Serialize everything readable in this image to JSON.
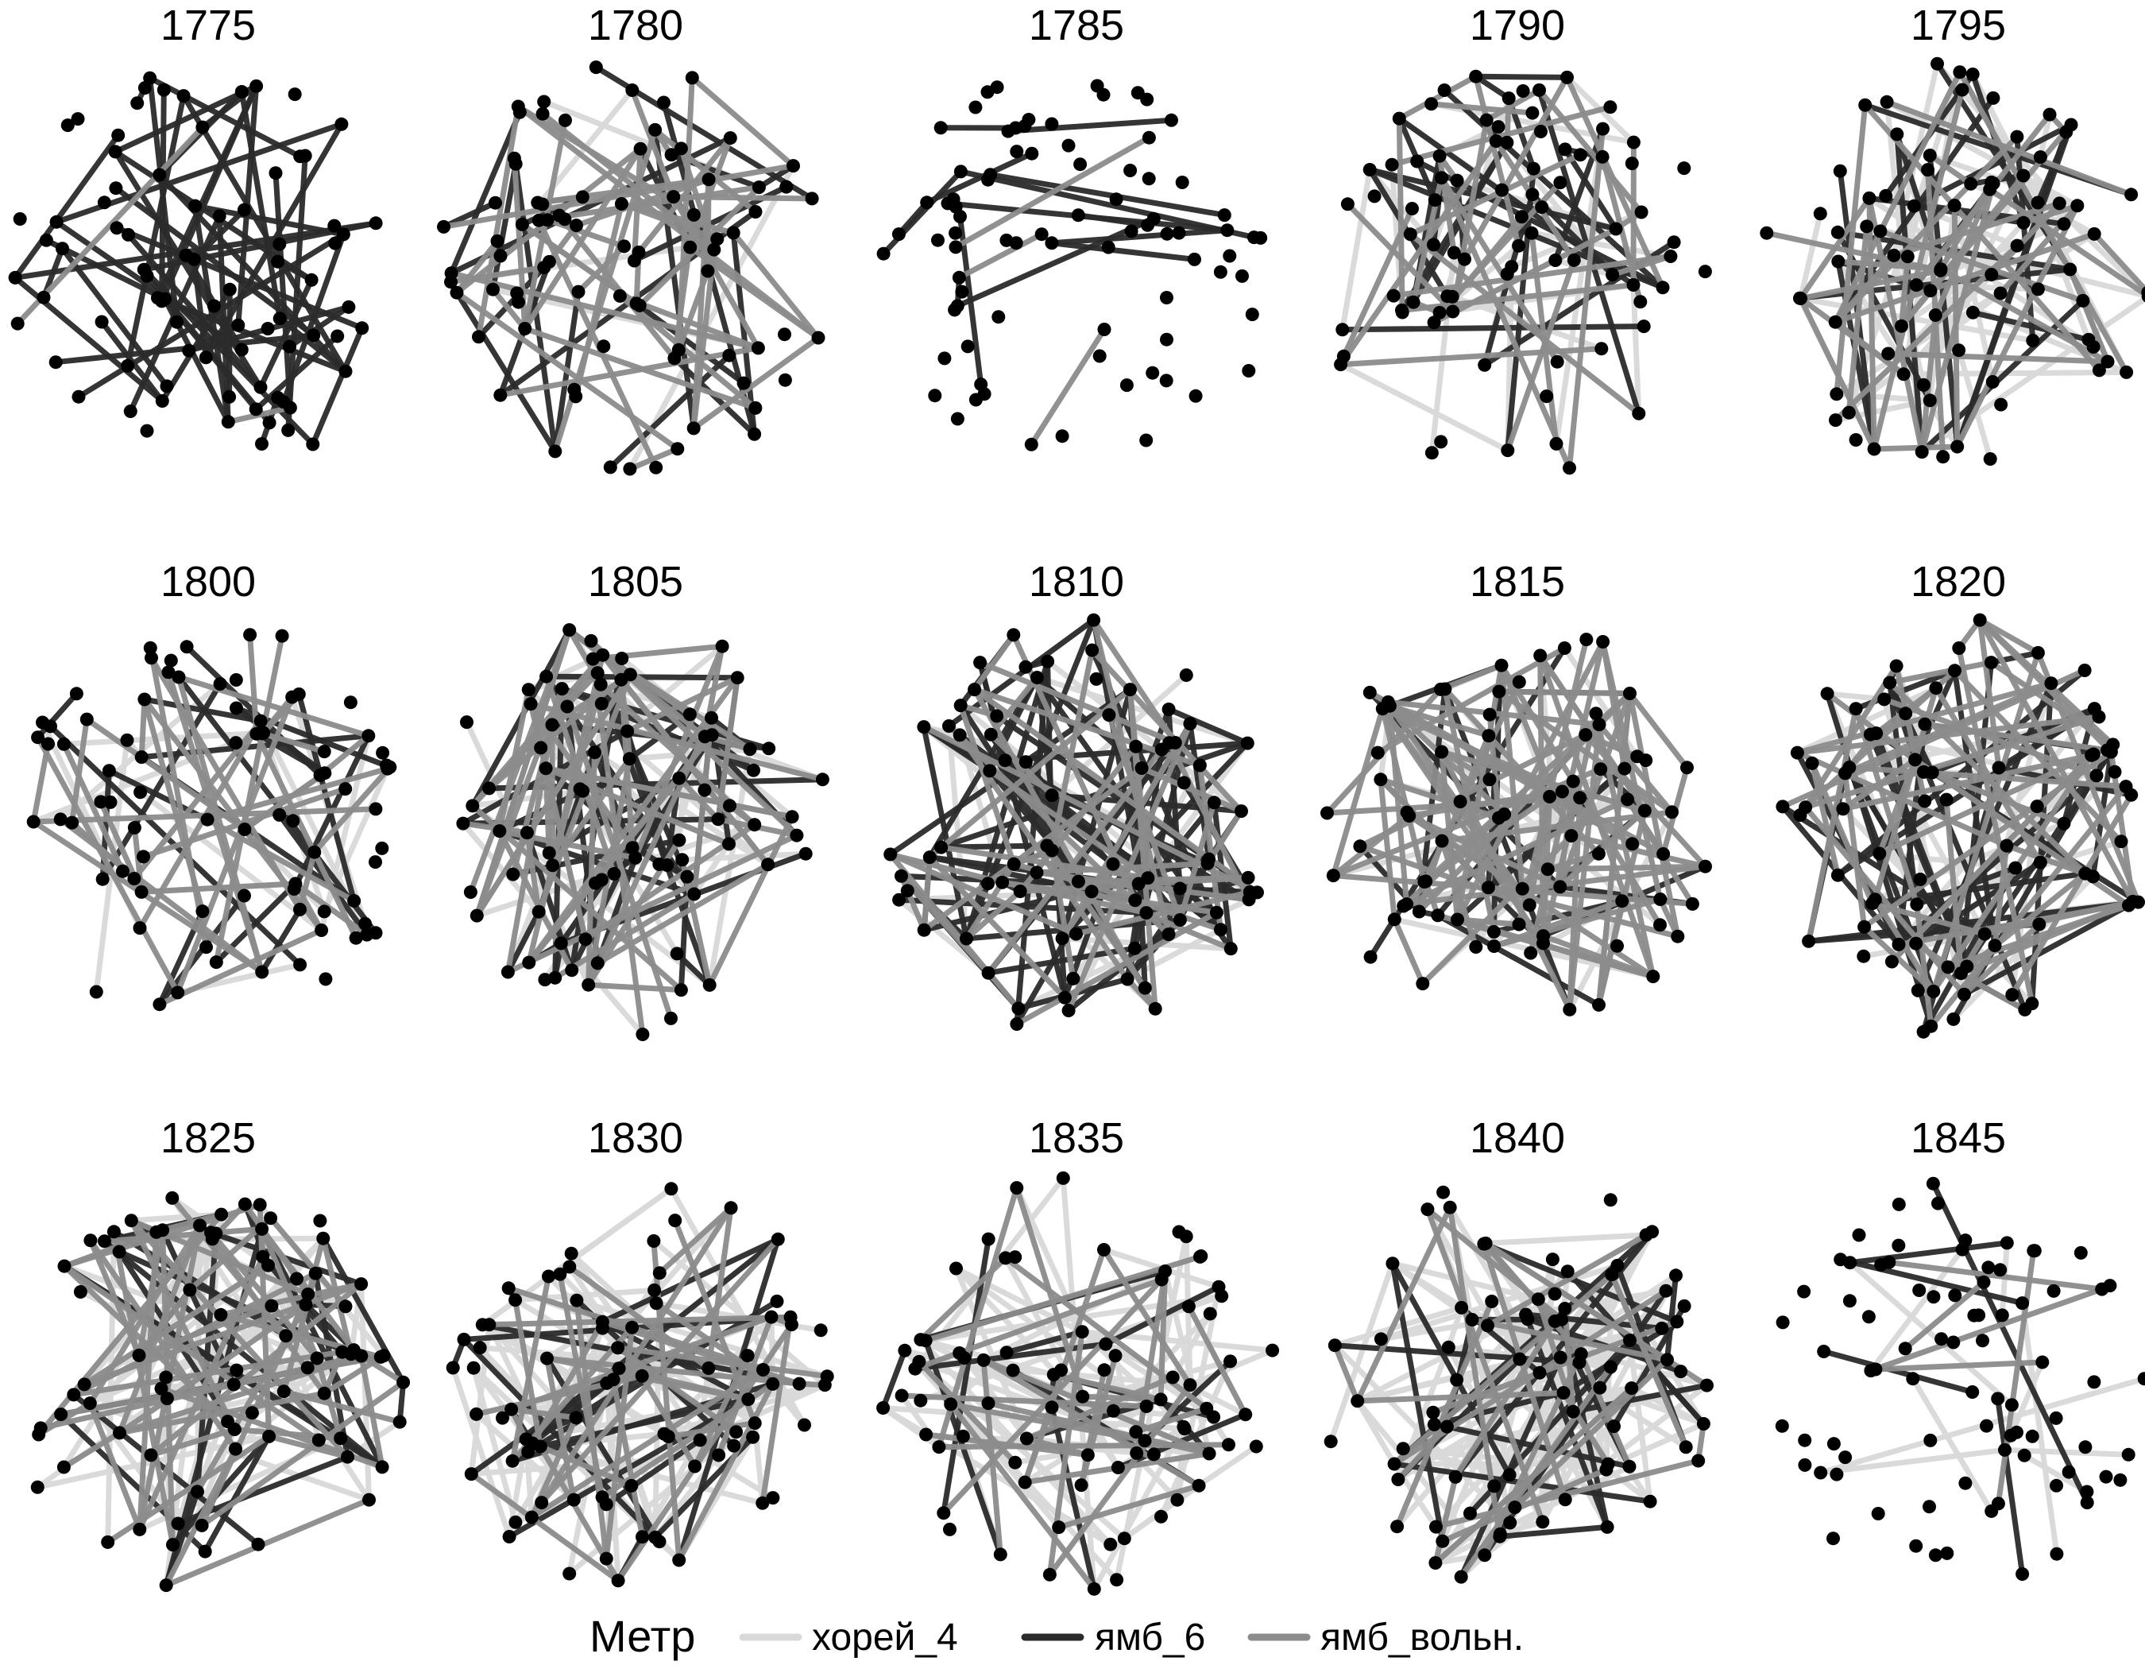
{
  "chart_data": {
    "type": "network-small-multiples",
    "panels": [
      "1775",
      "1780",
      "1785",
      "1790",
      "1795",
      "1800",
      "1805",
      "1810",
      "1815",
      "1820",
      "1825",
      "1830",
      "1835",
      "1840",
      "1845"
    ],
    "edge_density": {
      "1775": {
        "хорей_4": 0,
        "ямб_6": 60,
        "ямб_вольн.": 2
      },
      "1780": {
        "хорей_4": 5,
        "ямб_6": 25,
        "ямб_вольн.": 55
      },
      "1785": {
        "хорей_4": 0,
        "ямб_6": 14,
        "ямб_вольн.": 3
      },
      "1790": {
        "хорей_4": 25,
        "ямб_6": 25,
        "ямб_вольн.": 40
      },
      "1795": {
        "хорей_4": 45,
        "ямб_6": 25,
        "ямб_вольн.": 45
      },
      "1800": {
        "хорей_4": 15,
        "ямб_6": 20,
        "ямб_вольн.": 40
      },
      "1805": {
        "хорей_4": 35,
        "ямб_6": 45,
        "ямб_вольн.": 70
      },
      "1810": {
        "хорей_4": 20,
        "ямб_6": 70,
        "ямб_вольн.": 60
      },
      "1815": {
        "хорей_4": 20,
        "ямб_6": 20,
        "ямб_вольн.": 100
      },
      "1820": {
        "хорей_4": 25,
        "ямб_6": 45,
        "ямб_вольн.": 70
      },
      "1825": {
        "хорей_4": 50,
        "ямб_6": 30,
        "ямб_вольн.": 70
      },
      "1830": {
        "хорей_4": 70,
        "ямб_6": 25,
        "ямб_вольн.": 45
      },
      "1835": {
        "хорей_4": 65,
        "ямб_6": 15,
        "ямб_вольн.": 35
      },
      "1840": {
        "хорей_4": 90,
        "ямб_6": 30,
        "ямб_вольн.": 35
      },
      "1845": {
        "хорей_4": 12,
        "ямб_6": 5,
        "ямб_вольн.": 5
      }
    },
    "legend": {
      "title": "Метр",
      "entries": [
        {
          "label": "хорей_4",
          "color": "#d9d9d9"
        },
        {
          "label": "ямб_6",
          "color": "#2b2b2b"
        },
        {
          "label": "ямб_вольн.",
          "color": "#8c8c8c"
        }
      ],
      "placement": "bottom"
    },
    "node_color": "#000000"
  }
}
